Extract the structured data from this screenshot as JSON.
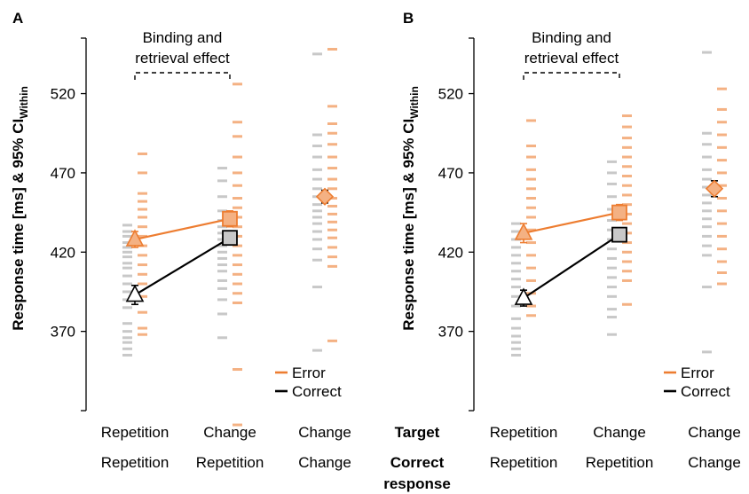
{
  "chart_data": [
    {
      "panel": "A",
      "type": "scatter",
      "ylabel": "Response time [ms] & 95% CI",
      "ylabel_sub": "Within",
      "yticks": [
        370,
        420,
        470,
        520
      ],
      "ylim": [
        320,
        555
      ],
      "annotation": [
        "Binding and",
        "retrieval effect"
      ],
      "bracket_categories": [
        0,
        1
      ],
      "legend": [
        "Error",
        "Correct"
      ],
      "categories": [
        {
          "target": "Repetition",
          "response": "Repetition"
        },
        {
          "target": "Change",
          "response": "Repetition"
        },
        {
          "target": "Change",
          "response": "Change"
        }
      ],
      "series": [
        {
          "name": "Error",
          "color": "#ED7D31",
          "markers": [
            "triangle",
            "square",
            "diamond"
          ],
          "means": [
            428,
            441,
            455
          ],
          "ci": [
            5,
            5,
            4
          ],
          "connect": [
            0,
            1
          ]
        },
        {
          "name": "Correct",
          "color": "#000000",
          "markers": [
            "triangle",
            "square"
          ],
          "means": [
            393,
            429
          ],
          "ci": [
            6,
            4
          ],
          "connect": [
            0,
            1
          ]
        }
      ],
      "individual_points": {
        "correct": [
          [
            355,
            359,
            363,
            366,
            370,
            375,
            385,
            390,
            395,
            400,
            405,
            410,
            413,
            417,
            420,
            423,
            426,
            430,
            433,
            437
          ],
          [
            366,
            381,
            390,
            397,
            402,
            408,
            412,
            416,
            420,
            424,
            428,
            432,
            436,
            440,
            446,
            455,
            465,
            473
          ],
          [
            358,
            398,
            415,
            422,
            428,
            433,
            438,
            442,
            446,
            450,
            455,
            460,
            466,
            472,
            480,
            487,
            494,
            545
          ]
        ],
        "error": [
          [
            368,
            372,
            382,
            392,
            400,
            406,
            412,
            418,
            424,
            430,
            436,
            442,
            447,
            452,
            457,
            470,
            482
          ],
          [
            311,
            346,
            388,
            394,
            400,
            406,
            412,
            418,
            424,
            430,
            436,
            442,
            448,
            454,
            462,
            470,
            480,
            493,
            502,
            526
          ],
          [
            364,
            411,
            417,
            423,
            429,
            434,
            439,
            444,
            449,
            454,
            460,
            466,
            473,
            480,
            488,
            495,
            501,
            512,
            548
          ]
        ]
      }
    },
    {
      "panel": "B",
      "type": "scatter",
      "ylabel": "Response time [ms] & 95% CI",
      "ylabel_sub": "Within",
      "yticks": [
        370,
        420,
        470,
        520
      ],
      "ylim": [
        320,
        555
      ],
      "annotation": [
        "Binding and",
        "retrieval effect"
      ],
      "bracket_categories": [
        0,
        1
      ],
      "legend": [
        "Error",
        "Correct"
      ],
      "categories": [
        {
          "target": "Repetition",
          "response": "Repetition"
        },
        {
          "target": "Change",
          "response": "Repetition"
        },
        {
          "target": "Change",
          "response": "Change"
        }
      ],
      "series": [
        {
          "name": "Error",
          "color": "#ED7D31",
          "markers": [
            "triangle",
            "square",
            "diamond"
          ],
          "means": [
            432,
            445,
            460
          ],
          "ci": [
            6,
            5,
            5
          ],
          "connect": [
            0,
            1
          ]
        },
        {
          "name": "Correct",
          "color": "#000000",
          "markers": [
            "triangle",
            "square"
          ],
          "means": [
            391,
            431
          ],
          "ci": [
            5,
            4
          ],
          "connect": [
            0,
            1
          ]
        }
      ],
      "individual_points": {
        "correct": [
          [
            355,
            359,
            363,
            367,
            372,
            378,
            386,
            392,
            398,
            403,
            408,
            413,
            418,
            423,
            428,
            433,
            438
          ],
          [
            368,
            379,
            384,
            392,
            398,
            404,
            410,
            416,
            422,
            428,
            434,
            440,
            447,
            455,
            463,
            470,
            477
          ],
          [
            357,
            398,
            418,
            424,
            430,
            436,
            441,
            446,
            451,
            456,
            461,
            466,
            472,
            480,
            488,
            495,
            546
          ]
        ],
        "error": [
          [
            380,
            386,
            394,
            402,
            410,
            418,
            426,
            434,
            442,
            448,
            454,
            460,
            466,
            472,
            480,
            487,
            503
          ],
          [
            387,
            402,
            408,
            414,
            420,
            426,
            432,
            438,
            444,
            450,
            456,
            462,
            468,
            474,
            480,
            486,
            492,
            499,
            506
          ],
          [
            400,
            407,
            414,
            422,
            430,
            438,
            446,
            454,
            462,
            470,
            478,
            486,
            494,
            502,
            510,
            523
          ]
        ]
      }
    }
  ],
  "row_labels": {
    "target": "Target",
    "response_line1": "Correct",
    "response_line2": "response"
  }
}
